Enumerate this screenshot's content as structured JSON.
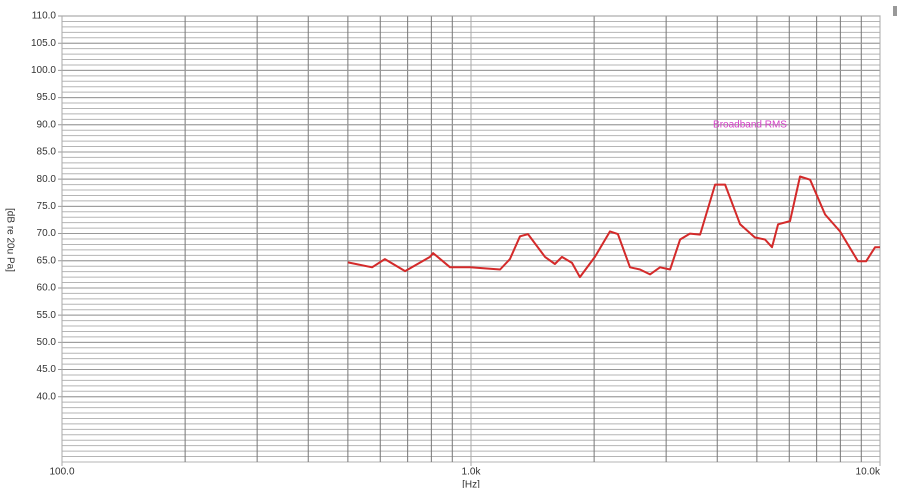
{
  "chart_data": {
    "type": "line",
    "annotation": "Broadband RMS",
    "x_label": "[Hz]",
    "y_label": "[dB re 20u Pa]",
    "log_x": true,
    "grid": true,
    "y_minor_step": 1,
    "xlim": [
      100,
      10000
    ],
    "xticks": [
      {
        "value": 100,
        "label": "100.0"
      },
      {
        "value": 1000,
        "label": "1.0k"
      },
      {
        "value": 10000,
        "label": "10.0k"
      }
    ],
    "ylim": [
      28,
      110
    ],
    "yticks": [
      {
        "value": 40,
        "label": "40.0"
      },
      {
        "value": 45,
        "label": "45.0"
      },
      {
        "value": 50,
        "label": "50.0"
      },
      {
        "value": 55,
        "label": "55.0"
      },
      {
        "value": 60,
        "label": "60.0"
      },
      {
        "value": 65,
        "label": "65.0"
      },
      {
        "value": 70,
        "label": "70.0"
      },
      {
        "value": 75,
        "label": "75.0"
      },
      {
        "value": 80,
        "label": "80.0"
      },
      {
        "value": 85,
        "label": "85.0"
      },
      {
        "value": 90,
        "label": "90.0"
      },
      {
        "value": 95,
        "label": "95.0"
      },
      {
        "value": 100,
        "label": "100.0"
      },
      {
        "value": 105,
        "label": "105.0"
      },
      {
        "value": 110,
        "label": "110.0"
      }
    ],
    "series": [
      {
        "name": "Broadband RMS",
        "color": "#d42a2a",
        "x": [
          500,
          573,
          616,
          690,
          794,
          808,
          889,
          995,
          1178,
          1245,
          1318,
          1378,
          1517,
          1604,
          1668,
          1766,
          1846,
          2009,
          2187,
          2287,
          2447,
          2589,
          2740,
          2898,
          3068,
          3245,
          3430,
          3631,
          3953,
          4180,
          4550,
          4943,
          5234,
          5443,
          5634,
          6026,
          6374,
          6745,
          7341,
          7984,
          8837,
          9248,
          9727,
          10000
        ],
        "values": [
          64.7,
          63.8,
          65.3,
          63.1,
          65.7,
          66.4,
          63.8,
          63.8,
          63.4,
          65.3,
          69.5,
          69.9,
          65.7,
          64.4,
          65.7,
          64.6,
          62.0,
          65.7,
          70.4,
          69.9,
          63.8,
          63.4,
          62.5,
          63.8,
          63.4,
          68.9,
          70.0,
          69.8,
          79.0,
          79.0,
          71.7,
          69.3,
          68.9,
          67.5,
          71.7,
          72.3,
          80.5,
          79.9,
          73.5,
          70.4,
          64.9,
          64.9,
          67.5,
          67.5
        ]
      }
    ]
  }
}
